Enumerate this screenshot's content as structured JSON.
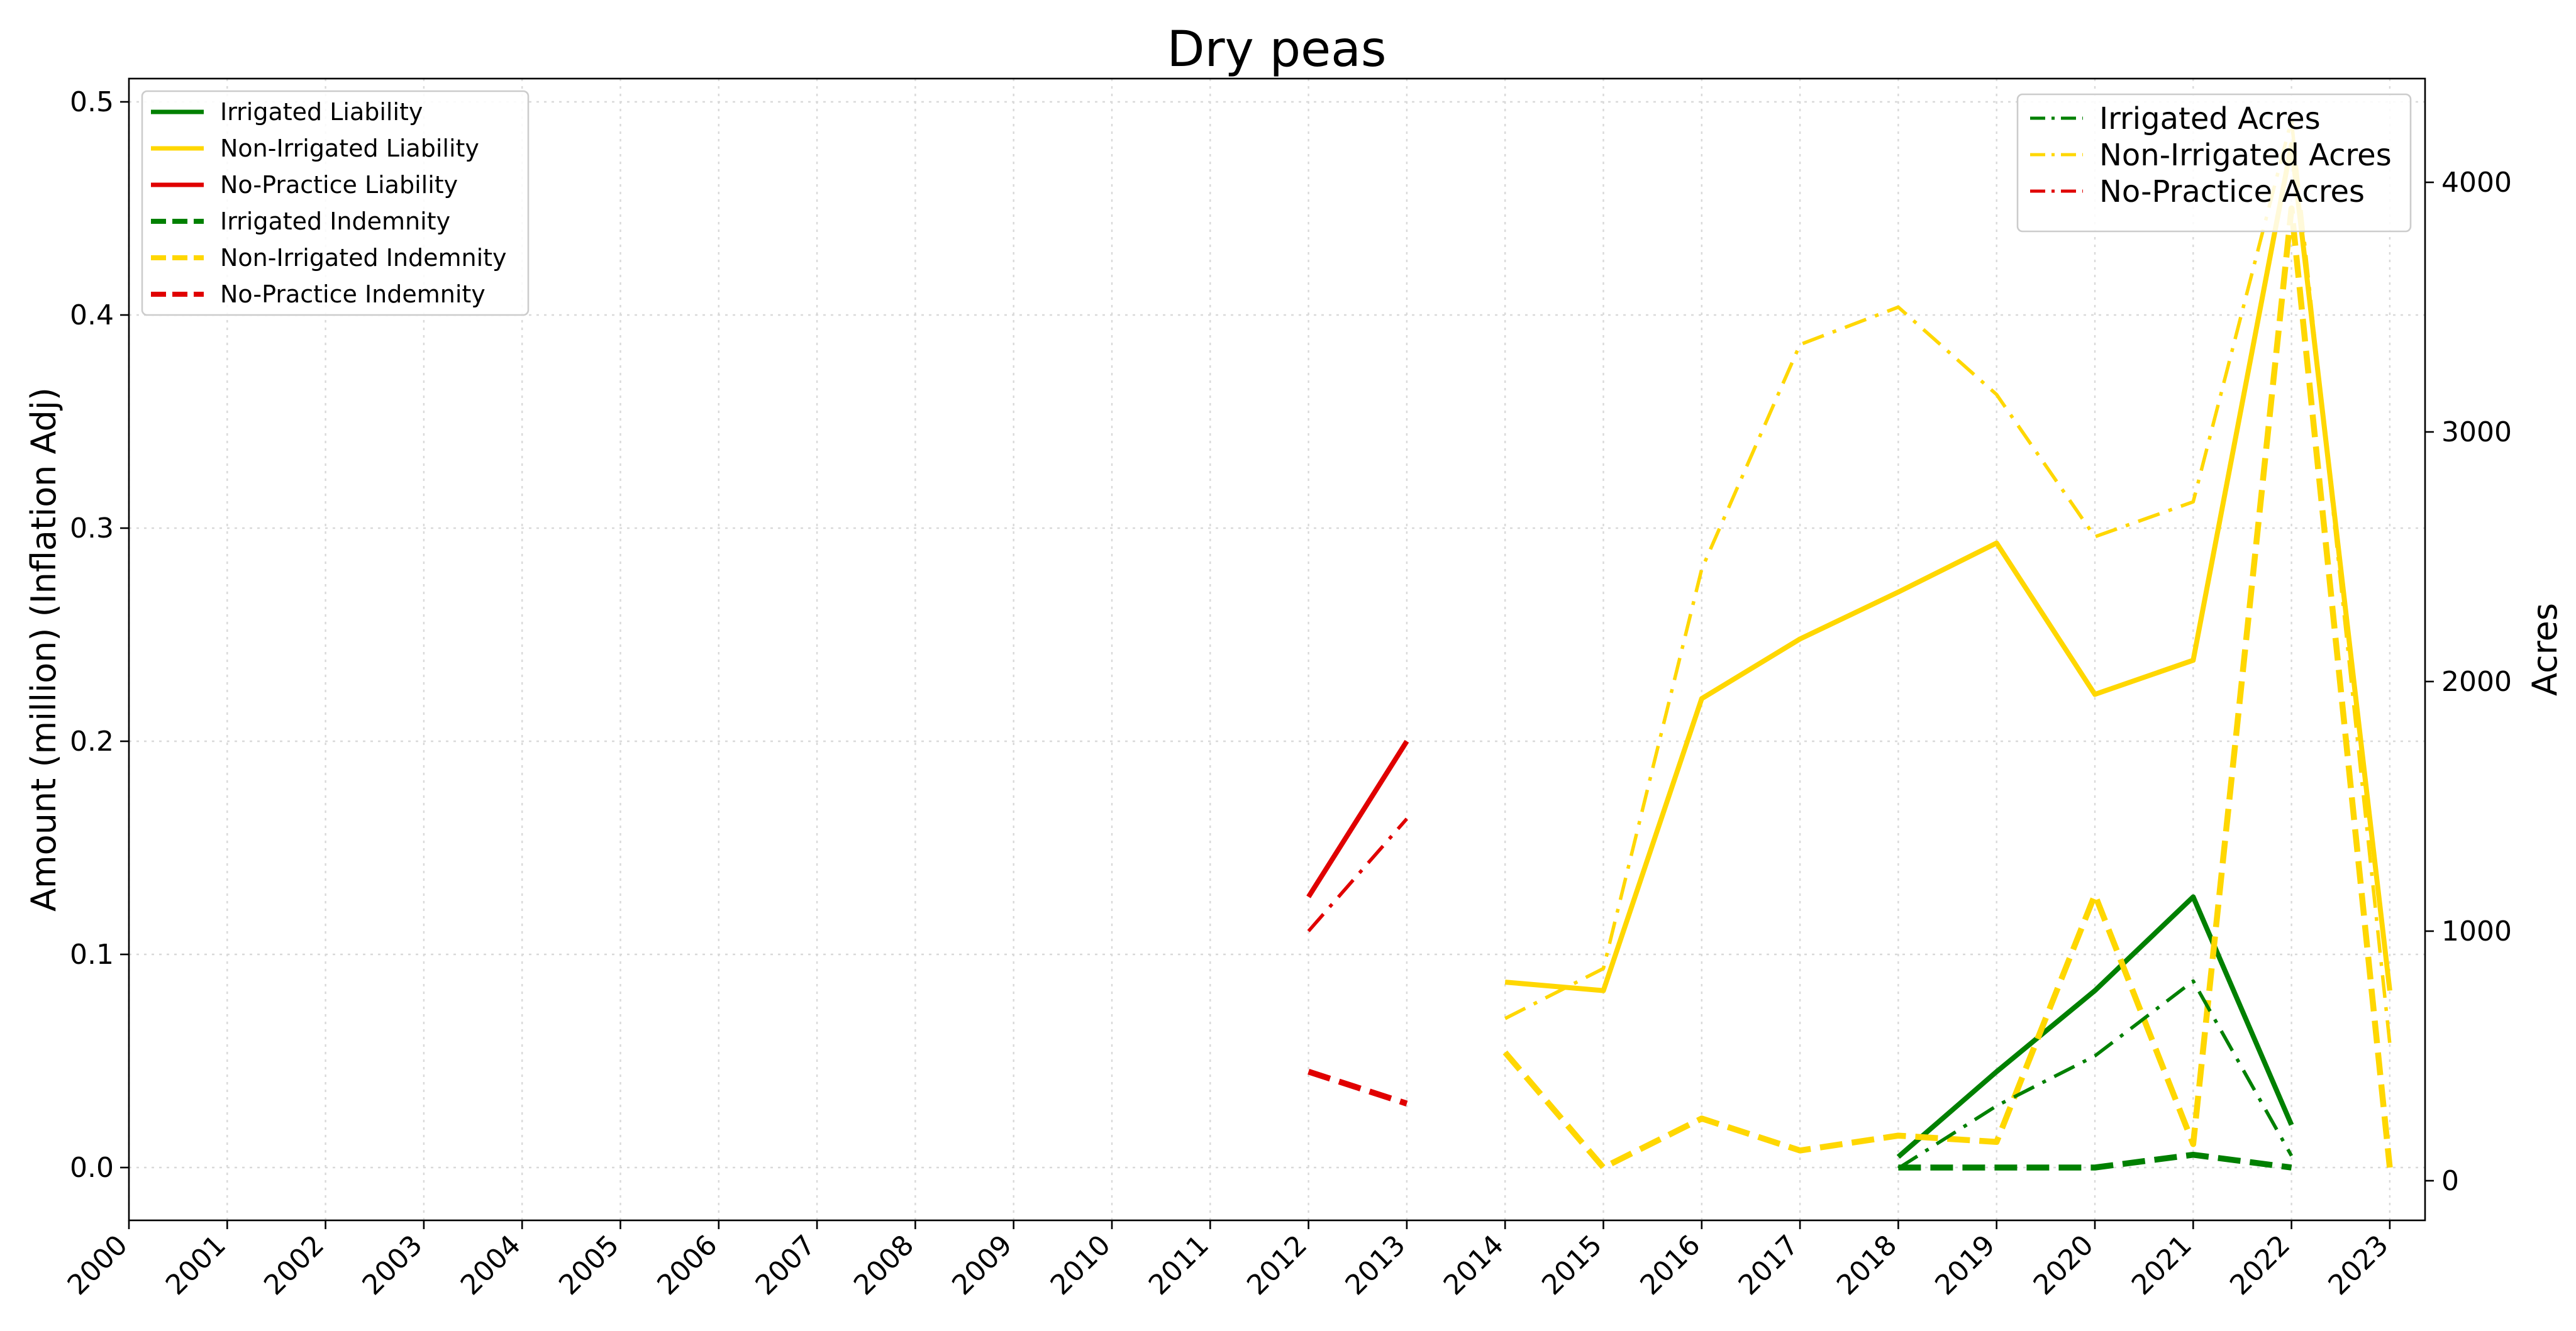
{
  "chart_data": {
    "type": "line",
    "title": "Dry peas",
    "ylabel": "Amount (million) (Inflation Adj)",
    "y2label": "Acres",
    "x": [
      2000,
      2001,
      2002,
      2003,
      2004,
      2005,
      2006,
      2007,
      2008,
      2009,
      2010,
      2011,
      2012,
      2013,
      2014,
      2015,
      2016,
      2017,
      2018,
      2019,
      2020,
      2021,
      2022,
      2023
    ],
    "xlim": [
      2000,
      2023
    ],
    "ylim": [
      0,
      0.5
    ],
    "y2lim": [
      0,
      4000
    ],
    "grid": true,
    "colors": {
      "irrigated": "#008000",
      "non_irrigated": "#FFD700",
      "no_practice": "#E00000"
    },
    "legend_left": {
      "placement": "top-left",
      "entries": [
        {
          "label": "Irrigated Liability",
          "color": "#008000",
          "style": "solid"
        },
        {
          "label": "Non-Irrigated Liability",
          "color": "#FFD700",
          "style": "solid"
        },
        {
          "label": "No-Practice Liability",
          "color": "#E00000",
          "style": "solid"
        },
        {
          "label": "Irrigated Indemnity",
          "color": "#008000",
          "style": "dashed"
        },
        {
          "label": "Non-Irrigated Indemnity",
          "color": "#FFD700",
          "style": "dashed"
        },
        {
          "label": "No-Practice Indemnity",
          "color": "#E00000",
          "style": "dashed"
        }
      ]
    },
    "legend_right": {
      "placement": "top-right",
      "entries": [
        {
          "label": "Irrigated Acres",
          "color": "#008000",
          "style": "dashdot"
        },
        {
          "label": "Non-Irrigated Acres",
          "color": "#FFD700",
          "style": "dashdot"
        },
        {
          "label": "No-Practice Acres",
          "color": "#E00000",
          "style": "dashdot"
        }
      ]
    },
    "series": [
      {
        "name": "Irrigated Liability",
        "axis": "left",
        "color": "#008000",
        "style": "solid",
        "values": [
          null,
          null,
          null,
          null,
          null,
          null,
          null,
          null,
          null,
          null,
          null,
          null,
          null,
          null,
          null,
          null,
          null,
          null,
          0.005,
          0.045,
          0.083,
          0.127,
          0.02,
          null
        ]
      },
      {
        "name": "Non-Irrigated Liability",
        "axis": "left",
        "color": "#FFD700",
        "style": "solid",
        "values": [
          null,
          null,
          null,
          null,
          null,
          null,
          null,
          null,
          null,
          null,
          null,
          null,
          null,
          null,
          0.087,
          0.083,
          0.22,
          0.248,
          0.27,
          0.293,
          0.222,
          0.238,
          0.48,
          0.083
        ]
      },
      {
        "name": "No-Practice Liability",
        "axis": "left",
        "color": "#E00000",
        "style": "solid",
        "values": [
          null,
          null,
          null,
          null,
          null,
          null,
          null,
          null,
          null,
          null,
          null,
          null,
          0.127,
          0.2,
          null,
          null,
          null,
          null,
          null,
          null,
          null,
          null,
          null,
          null
        ]
      },
      {
        "name": "Irrigated Indemnity",
        "axis": "left",
        "color": "#008000",
        "style": "dashed",
        "values": [
          null,
          null,
          null,
          null,
          null,
          null,
          null,
          null,
          null,
          null,
          null,
          null,
          null,
          null,
          null,
          null,
          null,
          null,
          0.0,
          0.0,
          0.0,
          0.006,
          0.0,
          null
        ]
      },
      {
        "name": "Non-Irrigated Indemnity",
        "axis": "left",
        "color": "#FFD700",
        "style": "dashed",
        "values": [
          null,
          null,
          null,
          null,
          null,
          null,
          null,
          null,
          null,
          null,
          null,
          null,
          null,
          null,
          0.054,
          0.0,
          0.023,
          0.008,
          0.015,
          0.012,
          0.128,
          0.011,
          0.45,
          0.0
        ]
      },
      {
        "name": "No-Practice Indemnity",
        "axis": "left",
        "color": "#E00000",
        "style": "dashed",
        "values": [
          null,
          null,
          null,
          null,
          null,
          null,
          null,
          null,
          null,
          null,
          null,
          null,
          0.045,
          0.03,
          null,
          null,
          null,
          null,
          null,
          null,
          null,
          null,
          null,
          null
        ]
      },
      {
        "name": "Irrigated Acres",
        "axis": "right",
        "color": "#008000",
        "style": "dashdot",
        "values": [
          null,
          null,
          null,
          null,
          null,
          null,
          null,
          null,
          null,
          null,
          null,
          null,
          null,
          null,
          null,
          null,
          null,
          null,
          50,
          300,
          500,
          800,
          100,
          null
        ]
      },
      {
        "name": "Non-Irrigated Acres",
        "axis": "right",
        "color": "#FFD700",
        "style": "dashdot",
        "values": [
          null,
          null,
          null,
          null,
          null,
          null,
          null,
          null,
          null,
          null,
          null,
          null,
          null,
          null,
          650,
          850,
          2450,
          3350,
          3500,
          3150,
          2580,
          2720,
          4250,
          550
        ]
      },
      {
        "name": "No-Practice Acres",
        "axis": "right",
        "color": "#E00000",
        "style": "dashdot",
        "values": [
          null,
          null,
          null,
          null,
          null,
          null,
          null,
          null,
          null,
          null,
          null,
          null,
          1000,
          1450,
          null,
          null,
          null,
          null,
          null,
          null,
          null,
          null,
          null,
          null
        ]
      }
    ]
  }
}
